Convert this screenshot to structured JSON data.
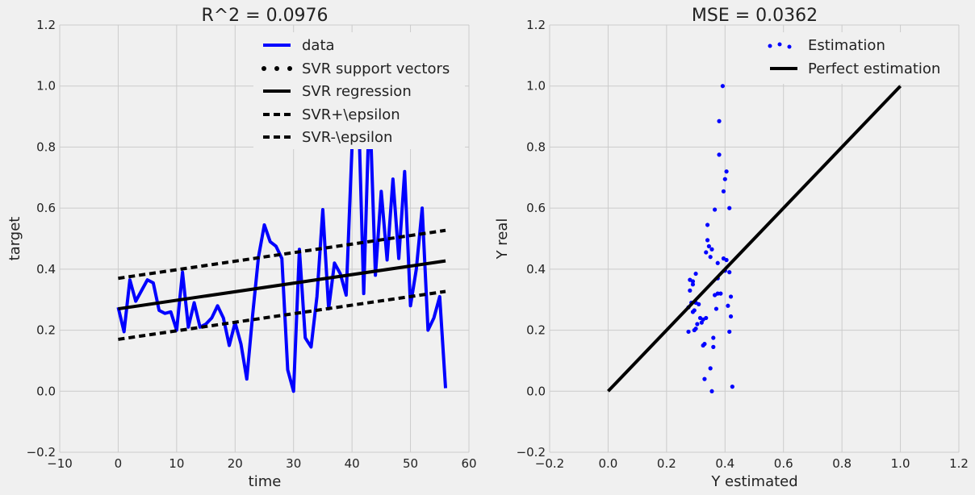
{
  "chart_data": [
    {
      "type": "line",
      "title": "R^2 = 0.0976",
      "xlabel": "time",
      "ylabel": "target",
      "xlim": [
        -10,
        60
      ],
      "ylim": [
        -0.2,
        1.2
      ],
      "xticks": [
        "−10",
        "0",
        "10",
        "20",
        "30",
        "40",
        "50",
        "60"
      ],
      "yticks": [
        "−0.2",
        "0.0",
        "0.2",
        "0.4",
        "0.6",
        "0.8",
        "1.0",
        "1.2"
      ],
      "grid": true,
      "legend_position": "top-right",
      "legend": [
        "data",
        "SVR support vectors",
        "SVR regression",
        "SVR+\\epsilon",
        "SVR-\\epsilon"
      ],
      "series": [
        {
          "name": "data",
          "color": "#0000ff",
          "x": [
            0,
            1,
            2,
            3,
            4,
            5,
            6,
            7,
            8,
            9,
            10,
            11,
            12,
            13,
            14,
            15,
            16,
            17,
            18,
            19,
            20,
            21,
            22,
            23,
            24,
            25,
            26,
            27,
            28,
            29,
            30,
            31,
            32,
            33,
            34,
            35,
            36,
            37,
            38,
            39,
            40,
            41,
            42,
            43,
            44,
            45,
            46,
            47,
            48,
            49,
            50,
            51,
            52,
            53,
            54,
            55,
            56
          ],
          "y": [
            0.275,
            0.195,
            0.365,
            0.295,
            0.33,
            0.365,
            0.355,
            0.265,
            0.255,
            0.26,
            0.2,
            0.39,
            0.21,
            0.29,
            0.21,
            0.22,
            0.24,
            0.28,
            0.24,
            0.15,
            0.225,
            0.155,
            0.04,
            0.25,
            0.44,
            0.545,
            0.49,
            0.475,
            0.435,
            0.07,
            0.0,
            0.465,
            0.175,
            0.145,
            0.31,
            0.595,
            0.27,
            0.42,
            0.385,
            0.315,
            0.8,
            1.0,
            0.32,
            0.96,
            0.38,
            0.655,
            0.43,
            0.695,
            0.435,
            0.72,
            0.28,
            0.4,
            0.6,
            0.2,
            0.24,
            0.31,
            0.01
          ]
        },
        {
          "name": "SVR regression",
          "color": "#000000",
          "dash": "solid",
          "x": [
            0,
            56
          ],
          "y": [
            0.27,
            0.427
          ]
        },
        {
          "name": "SVR+\\epsilon",
          "color": "#000000",
          "dash": "dashed",
          "x": [
            0,
            56
          ],
          "y": [
            0.37,
            0.527
          ]
        },
        {
          "name": "SVR-\\epsilon",
          "color": "#000000",
          "dash": "dashed",
          "x": [
            0,
            56
          ],
          "y": [
            0.17,
            0.327
          ]
        }
      ]
    },
    {
      "type": "scatter",
      "title": "MSE = 0.0362",
      "xlabel": "Y estimated",
      "ylabel": "Y real",
      "xlim": [
        -0.2,
        1.2
      ],
      "ylim": [
        -0.2,
        1.2
      ],
      "xticks": [
        "−0.2",
        "0.0",
        "0.2",
        "0.4",
        "0.6",
        "0.8",
        "1.0",
        "1.2"
      ],
      "yticks": [
        "−0.2",
        "0.0",
        "0.2",
        "0.4",
        "0.6",
        "0.8",
        "1.0",
        "1.2"
      ],
      "grid": true,
      "legend_position": "top-right",
      "legend": [
        "Estimation",
        "Perfect estimation"
      ],
      "series": [
        {
          "name": "Estimation",
          "color": "#0000ff",
          "points": [
            [
              0.392,
              1.0
            ],
            [
              0.38,
              0.885
            ],
            [
              0.38,
              0.775
            ],
            [
              0.405,
              0.72
            ],
            [
              0.4,
              0.695
            ],
            [
              0.395,
              0.655
            ],
            [
              0.415,
              0.6
            ],
            [
              0.365,
              0.595
            ],
            [
              0.34,
              0.545
            ],
            [
              0.34,
              0.495
            ],
            [
              0.345,
              0.475
            ],
            [
              0.355,
              0.465
            ],
            [
              0.335,
              0.455
            ],
            [
              0.35,
              0.44
            ],
            [
              0.395,
              0.435
            ],
            [
              0.405,
              0.43
            ],
            [
              0.375,
              0.42
            ],
            [
              0.4,
              0.395
            ],
            [
              0.415,
              0.39
            ],
            [
              0.3,
              0.385
            ],
            [
              0.375,
              0.37
            ],
            [
              0.28,
              0.365
            ],
            [
              0.29,
              0.36
            ],
            [
              0.29,
              0.35
            ],
            [
              0.28,
              0.33
            ],
            [
              0.375,
              0.32
            ],
            [
              0.385,
              0.32
            ],
            [
              0.365,
              0.315
            ],
            [
              0.42,
              0.31
            ],
            [
              0.285,
              0.29
            ],
            [
              0.3,
              0.29
            ],
            [
              0.31,
              0.285
            ],
            [
              0.41,
              0.28
            ],
            [
              0.275,
              0.275
            ],
            [
              0.295,
              0.265
            ],
            [
              0.37,
              0.27
            ],
            [
              0.29,
              0.26
            ],
            [
              0.42,
              0.245
            ],
            [
              0.315,
              0.24
            ],
            [
              0.325,
              0.235
            ],
            [
              0.335,
              0.24
            ],
            [
              0.305,
              0.22
            ],
            [
              0.32,
              0.225
            ],
            [
              0.3,
              0.205
            ],
            [
              0.295,
              0.2
            ],
            [
              0.275,
              0.195
            ],
            [
              0.415,
              0.195
            ],
            [
              0.36,
              0.175
            ],
            [
              0.33,
              0.155
            ],
            [
              0.325,
              0.15
            ],
            [
              0.36,
              0.145
            ],
            [
              0.35,
              0.075
            ],
            [
              0.33,
              0.04
            ],
            [
              0.425,
              0.015
            ],
            [
              0.355,
              0.0
            ]
          ]
        },
        {
          "name": "Perfect estimation",
          "color": "#000000",
          "dash": "solid",
          "x": [
            0.0,
            1.0
          ],
          "y": [
            0.0,
            1.0
          ]
        }
      ]
    }
  ]
}
